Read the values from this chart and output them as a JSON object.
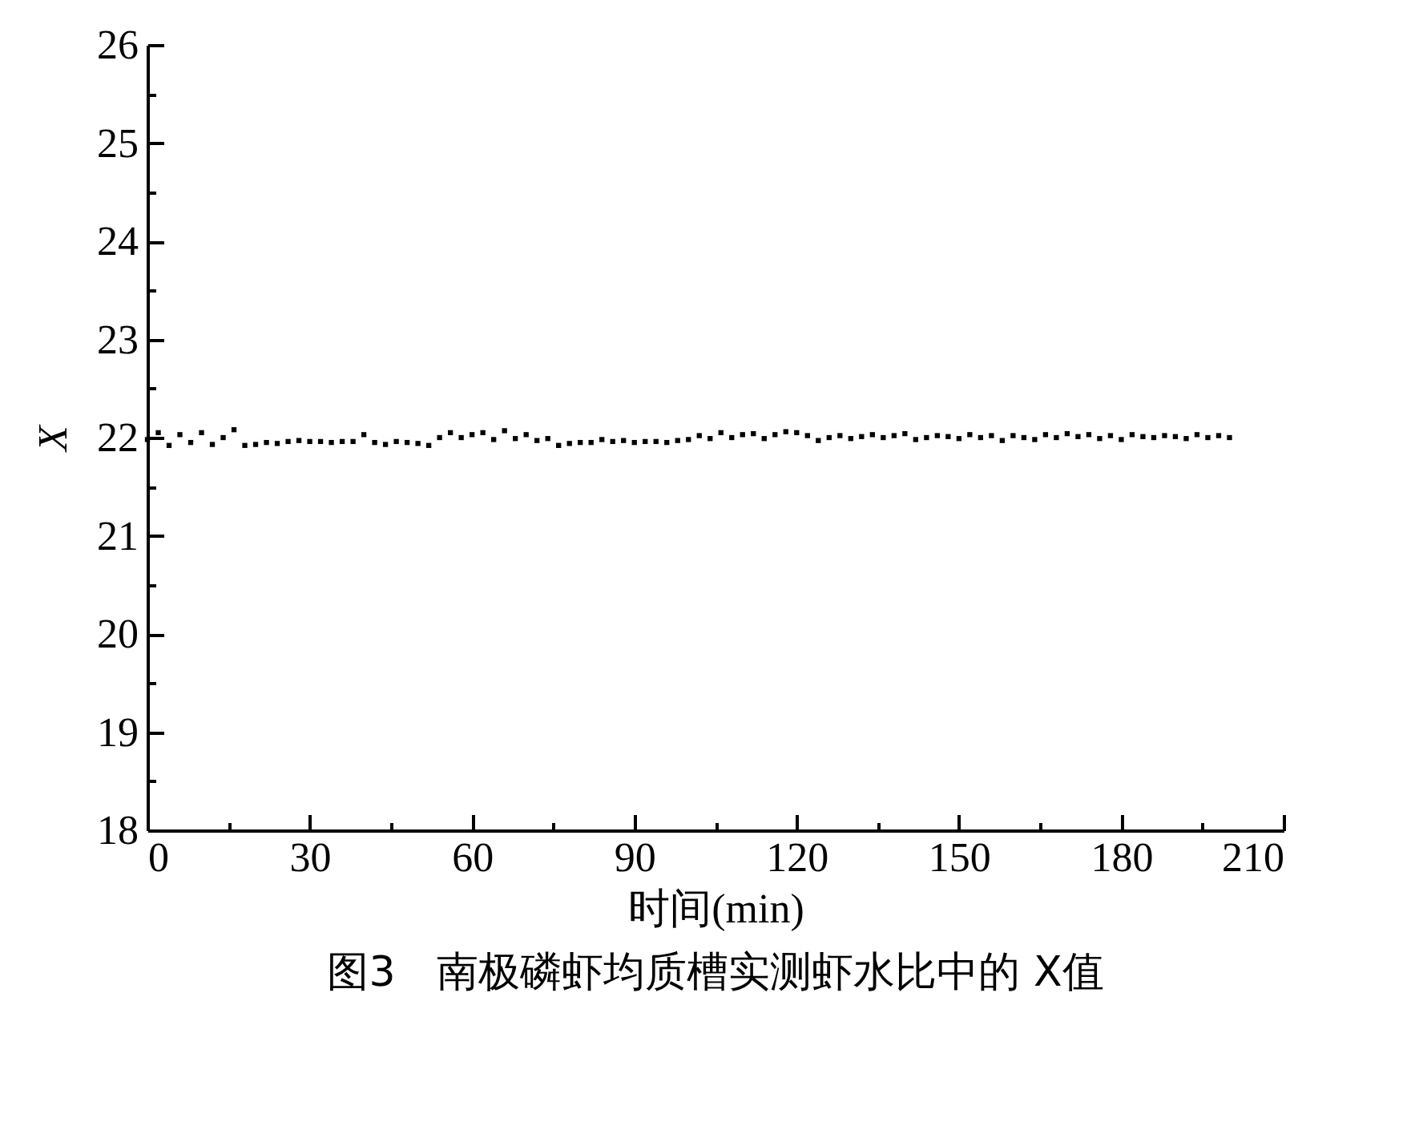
{
  "chart_data": {
    "type": "scatter",
    "title": "图3　南极磷虾均质槽实测虾水比中的 X值",
    "xlabel": "时间(min)",
    "ylabel": "X",
    "xlim": [
      0,
      210
    ],
    "ylim": [
      18,
      26
    ],
    "xticks": [
      0,
      {
        "value": 15,
        "label": null
      },
      30,
      {
        "value": 45,
        "label": null
      },
      60,
      {
        "value": 75,
        "label": null
      },
      90,
      {
        "value": 105,
        "label": null
      },
      120,
      {
        "value": 135,
        "label": null
      },
      150,
      {
        "value": 165,
        "label": null
      },
      180,
      {
        "value": 195,
        "label": null
      },
      210
    ],
    "yticks": [
      18,
      {
        "value": 18.5,
        "label": null
      },
      19,
      {
        "value": 19.5,
        "label": null
      },
      20,
      {
        "value": 20.5,
        "label": null
      },
      21,
      {
        "value": 21.5,
        "label": null
      },
      22,
      {
        "value": 22.5,
        "label": null
      },
      23,
      {
        "value": 23.5,
        "label": null
      },
      24,
      {
        "value": 24.5,
        "label": null
      },
      25,
      {
        "value": 25.5,
        "label": null
      },
      26
    ],
    "grid": false,
    "legend": false,
    "marker": "square",
    "x": [
      0,
      2,
      4,
      6,
      8,
      10,
      12,
      14,
      16,
      18,
      20,
      22,
      24,
      26,
      28,
      30,
      32,
      34,
      36,
      38,
      40,
      42,
      44,
      46,
      48,
      50,
      52,
      54,
      56,
      58,
      60,
      62,
      64,
      66,
      68,
      70,
      72,
      74,
      76,
      78,
      80,
      82,
      84,
      86,
      88,
      90,
      92,
      94,
      96,
      98,
      100,
      102,
      104,
      106,
      108,
      110,
      112,
      114,
      116,
      118,
      120,
      122,
      124,
      126,
      128,
      130,
      132,
      134,
      136,
      138,
      140,
      142,
      144,
      146,
      148,
      150,
      152,
      154,
      156,
      158,
      160,
      162,
      164,
      166,
      168,
      170,
      172,
      174,
      176,
      178,
      180,
      182,
      184,
      186,
      188,
      190,
      192,
      194,
      196,
      198,
      200
    ],
    "series": [
      {
        "color": "#000000",
        "values": [
          21.98,
          22.05,
          21.92,
          22.03,
          21.95,
          22.05,
          21.93,
          22.0,
          22.08,
          21.92,
          21.93,
          21.95,
          21.94,
          21.96,
          21.97,
          21.96,
          21.96,
          21.95,
          21.96,
          21.96,
          22.03,
          21.95,
          21.93,
          21.96,
          21.95,
          21.94,
          21.92,
          22.0,
          22.05,
          22.0,
          22.03,
          22.05,
          21.98,
          22.07,
          21.99,
          22.03,
          21.97,
          21.99,
          21.92,
          21.94,
          21.95,
          21.95,
          21.98,
          21.96,
          21.97,
          21.95,
          21.96,
          21.96,
          21.95,
          21.97,
          21.98,
          22.02,
          21.99,
          22.05,
          22.0,
          22.03,
          22.04,
          21.99,
          22.03,
          22.06,
          22.05,
          22.02,
          21.97,
          22.0,
          22.02,
          21.99,
          22.01,
          22.03,
          22.0,
          22.02,
          22.04,
          21.98,
          22.0,
          22.02,
          22.01,
          21.99,
          22.03,
          22.0,
          22.02,
          21.97,
          22.02,
          22.0,
          21.98,
          22.03,
          22.0,
          22.04,
          22.01,
          22.03,
          21.99,
          22.02,
          21.98,
          22.03,
          22.01,
          22.0,
          22.02,
          22.01,
          21.99,
          22.03,
          22.0,
          22.02,
          22.0
        ]
      }
    ]
  }
}
